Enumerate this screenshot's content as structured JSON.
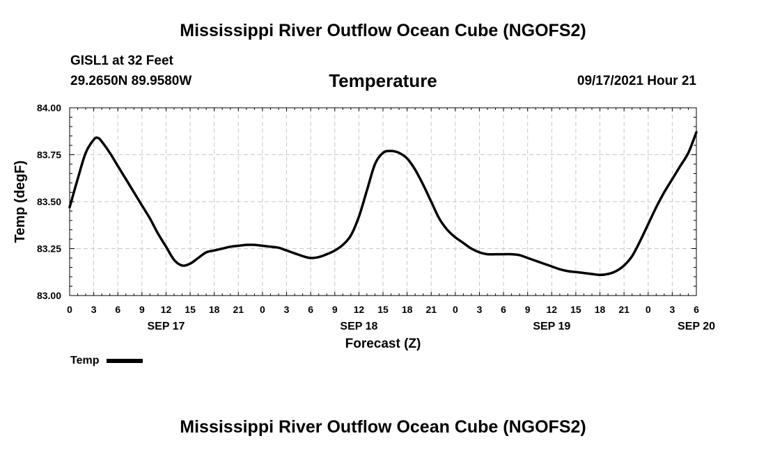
{
  "header": {
    "title": "Mississippi River Outflow Ocean Cube (NGOFS2)",
    "station": "GISL1 at 32 Feet",
    "coords": "29.2650N  89.9580W",
    "chart_title": "Temperature",
    "date": "09/17/2021 Hour 21"
  },
  "footer": {
    "title": "Mississippi River Outflow Ocean Cube (NGOFS2)"
  },
  "legend": {
    "label": "Temp"
  },
  "colors": {
    "line": "#000000",
    "grid": "#c8c8c8",
    "axis": "#000000"
  },
  "chart_data": {
    "type": "line",
    "title": "Temperature",
    "xlabel": "Forecast (Z)",
    "ylabel": "Temp (degF)",
    "ylim": [
      83.0,
      84.0
    ],
    "xlim": [
      0,
      78
    ],
    "yticks": [
      "83.00",
      "83.25",
      "83.50",
      "83.75",
      "84.00"
    ],
    "ytick_values": [
      83.0,
      83.25,
      83.5,
      83.75,
      84.0
    ],
    "xtick_labels": [
      "0",
      "3",
      "6",
      "9",
      "12",
      "15",
      "18",
      "21",
      "0",
      "3",
      "6",
      "9",
      "12",
      "15",
      "18",
      "21",
      "0",
      "3",
      "6",
      "9",
      "12",
      "15",
      "18",
      "21",
      "0",
      "3",
      "6"
    ],
    "date_labels": [
      {
        "label": "SEP 17",
        "at": 12
      },
      {
        "label": "SEP 18",
        "at": 36
      },
      {
        "label": "SEP 19",
        "at": 60
      },
      {
        "label": "SEP 20",
        "at": 78
      }
    ],
    "grid": true,
    "series": [
      {
        "name": "Temp",
        "x": [
          0,
          1,
          2,
          3,
          3.5,
          4,
          5,
          6,
          7,
          8,
          9,
          10,
          11,
          12,
          13,
          14,
          15,
          16,
          17,
          18,
          19,
          20,
          21,
          22,
          23,
          24,
          25,
          26,
          27,
          28,
          29,
          30,
          31,
          32,
          33,
          34,
          35,
          36,
          37,
          38,
          39,
          40,
          41,
          42,
          43,
          44,
          45,
          46,
          47,
          48,
          49,
          50,
          51,
          52,
          53,
          54,
          55,
          56,
          57,
          58,
          59,
          60,
          61,
          62,
          63,
          64,
          65,
          66,
          67,
          68,
          69,
          70,
          71,
          72,
          73,
          74,
          75,
          76,
          77,
          78
        ],
        "values": [
          83.47,
          83.62,
          83.76,
          83.83,
          83.84,
          83.82,
          83.76,
          83.69,
          83.62,
          83.55,
          83.48,
          83.41,
          83.33,
          83.26,
          83.19,
          83.16,
          83.17,
          83.2,
          83.23,
          83.24,
          83.25,
          83.26,
          83.265,
          83.27,
          83.27,
          83.265,
          83.26,
          83.255,
          83.24,
          83.225,
          83.21,
          83.2,
          83.205,
          83.22,
          83.24,
          83.27,
          83.32,
          83.42,
          83.56,
          83.7,
          83.76,
          83.77,
          83.76,
          83.73,
          83.67,
          83.59,
          83.5,
          83.41,
          83.35,
          83.31,
          83.28,
          83.25,
          83.23,
          83.22,
          83.22,
          83.22,
          83.22,
          83.215,
          83.2,
          83.185,
          83.17,
          83.155,
          83.14,
          83.13,
          83.125,
          83.12,
          83.115,
          83.11,
          83.115,
          83.13,
          83.16,
          83.21,
          83.29,
          83.38,
          83.47,
          83.55,
          83.62,
          83.69,
          83.76,
          83.87
        ]
      }
    ]
  }
}
